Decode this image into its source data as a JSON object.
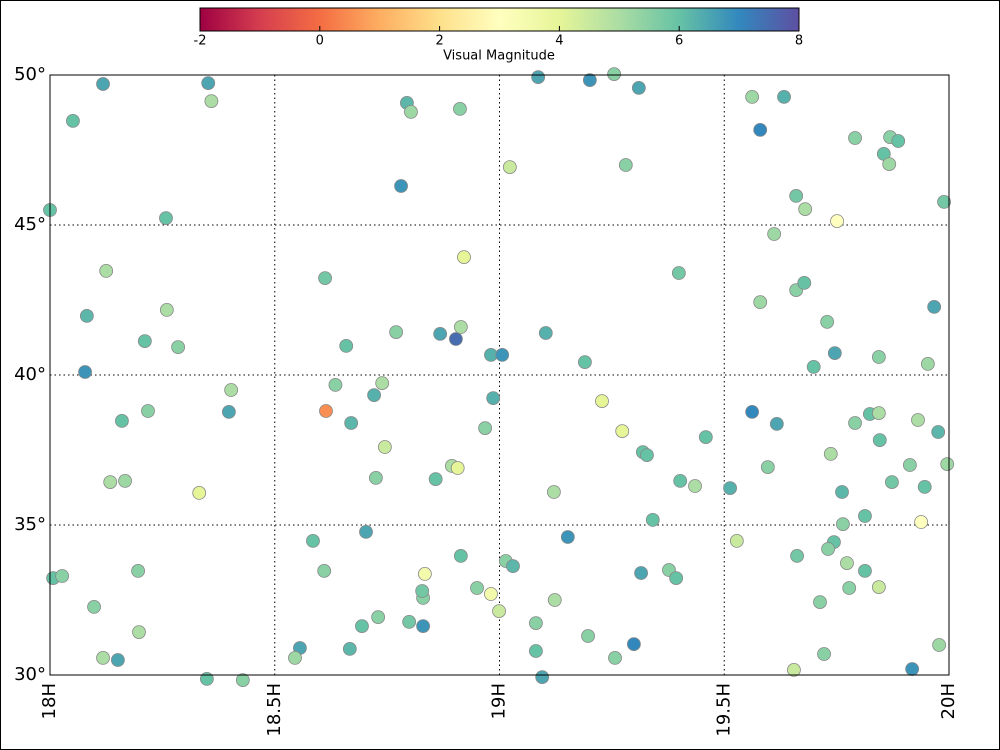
{
  "chart_data": {
    "type": "scatter",
    "xlim": [
      18,
      20
    ],
    "ylim": [
      30,
      50
    ],
    "xticks": [
      {
        "value": 18,
        "label": "18H"
      },
      {
        "value": 18.5,
        "label": "18.5H"
      },
      {
        "value": 19,
        "label": "19H"
      },
      {
        "value": 19.5,
        "label": "19.5H"
      },
      {
        "value": 20,
        "label": "20H"
      }
    ],
    "yticks": [
      {
        "value": 30,
        "label": "30°"
      },
      {
        "value": 35,
        "label": "35°"
      },
      {
        "value": 40,
        "label": "40°"
      },
      {
        "value": 45,
        "label": "45°"
      },
      {
        "value": 50,
        "label": "50°"
      }
    ],
    "grid": true,
    "colormap": "Spectral",
    "colorbar": {
      "label": "Visual Magnitude",
      "clim": [
        -2,
        8
      ],
      "ticks": [
        -2,
        0,
        2,
        4,
        6,
        8
      ]
    },
    "x": [
      18.0,
      18.051,
      18.118,
      18.352,
      18.359,
      18.258,
      18.125,
      18.082,
      18.26,
      18.211,
      18.285,
      18.078,
      18.403,
      18.398,
      18.16,
      18.218,
      18.134,
      18.167,
      18.332,
      18.007,
      18.027,
      18.196,
      18.098,
      18.198,
      18.118,
      18.151,
      18.349,
      18.429,
      18.612,
      18.659,
      18.635,
      18.614,
      18.67,
      18.739,
      18.721,
      18.745,
      18.725,
      18.703,
      18.585,
      18.61,
      18.556,
      18.545,
      18.667,
      18.694,
      18.73,
      18.799,
      18.83,
      18.83,
      18.828,
      18.834,
      18.914,
      18.95,
      18.981,
      18.999,
      19.014,
      19.03,
      19.081,
      19.081,
      19.095,
      19.123,
      19.197,
      19.257,
      19.299,
      19.315,
      19.152,
      19.121,
      19.341,
      19.319,
      19.328,
      19.273,
      19.228,
      19.19,
      18.968,
      18.986,
      18.894,
      18.907,
      18.858,
      18.868,
      18.903,
      18.914,
      18.981,
      19.006,
      19.103,
      18.77,
      18.921,
      19.023,
      18.781,
      18.794,
      18.803,
      18.912,
      19.086,
      19.201,
      19.255,
      19.31,
      19.281,
      19.399,
      19.459,
      19.402,
      19.435,
      19.377,
      19.393,
      19.513,
      19.528,
      19.562,
      19.633,
      19.58,
      19.791,
      19.869,
      19.887,
      19.855,
      19.867,
      19.66,
      19.68,
      19.751,
      19.611,
      19.989,
      19.58,
      19.66,
      19.678,
      19.729,
      19.967,
      19.746,
      19.699,
      19.844,
      19.953,
      19.562,
      19.617,
      19.791,
      19.824,
      19.844,
      19.931,
      19.976,
      19.846,
      19.737,
      19.597,
      19.762,
      19.873,
      19.913,
      19.946,
      19.996,
      19.764,
      19.813,
      19.938,
      19.744,
      19.731,
      19.662,
      19.773,
      19.813,
      19.778,
      19.844,
      19.713,
      19.978,
      19.722,
      19.918,
      19.655
    ],
    "y": [
      45.5,
      48.47,
      49.7,
      49.73,
      49.13,
      45.23,
      43.47,
      41.97,
      42.17,
      41.13,
      40.93,
      40.1,
      39.5,
      38.77,
      38.47,
      38.8,
      36.43,
      36.47,
      36.07,
      33.23,
      33.3,
      33.47,
      32.27,
      31.43,
      30.57,
      30.5,
      29.87,
      29.83,
      43.23,
      40.97,
      39.67,
      38.8,
      38.4,
      39.73,
      39.33,
      37.6,
      36.57,
      34.77,
      34.47,
      33.47,
      30.9,
      30.57,
      30.87,
      31.63,
      31.93,
      31.77,
      31.63,
      32.57,
      32.8,
      33.37,
      33.97,
      32.9,
      32.7,
      32.13,
      33.8,
      33.63,
      30.8,
      31.73,
      29.93,
      32.5,
      31.3,
      30.57,
      31.03,
      33.4,
      34.6,
      36.1,
      35.17,
      37.43,
      37.33,
      38.13,
      39.13,
      40.43,
      38.23,
      39.23,
      36.97,
      36.9,
      36.53,
      41.37,
      41.2,
      41.6,
      40.67,
      40.67,
      41.4,
      41.43,
      43.93,
      46.93,
      46.3,
      49.07,
      48.77,
      48.87,
      49.93,
      49.83,
      50.03,
      49.57,
      47.0,
      43.4,
      37.93,
      36.47,
      36.3,
      33.5,
      33.23,
      36.23,
      34.47,
      49.27,
      49.27,
      48.17,
      47.9,
      47.93,
      47.8,
      47.37,
      47.03,
      45.97,
      45.53,
      45.13,
      44.7,
      45.77,
      42.43,
      42.83,
      43.07,
      41.77,
      42.27,
      40.73,
      40.27,
      40.6,
      40.37,
      38.77,
      38.37,
      38.4,
      38.7,
      38.73,
      38.5,
      38.1,
      37.83,
      37.37,
      36.93,
      36.1,
      36.43,
      37.0,
      36.27,
      37.03,
      35.03,
      35.3,
      35.1,
      34.43,
      34.2,
      33.97,
      33.73,
      33.47,
      32.9,
      32.93,
      32.43,
      31.0,
      30.7,
      30.2,
      30.17
    ],
    "magnitude": [
      6,
      6,
      6.5,
      6.5,
      5,
      6,
      5,
      6.2,
      5,
      6,
      5.5,
      6.8,
      5,
      6.5,
      6,
      5.5,
      5,
      5.2,
      4,
      6,
      5.5,
      5.5,
      5.5,
      5,
      5,
      6.5,
      6,
      5.5,
      5.8,
      6,
      5.5,
      0.5,
      6.2,
      5,
      6.3,
      4.5,
      5.5,
      6.5,
      6,
      5.5,
      6.5,
      5.2,
      6.2,
      6,
      5.5,
      5.8,
      6.8,
      5.5,
      5.8,
      3.5,
      6,
      5.5,
      3.5,
      4.5,
      5.5,
      6.2,
      6,
      5.5,
      6.5,
      5,
      5.5,
      5.5,
      7,
      6.5,
      6.8,
      5,
      6,
      6,
      6,
      4,
      4,
      6,
      5.5,
      6.3,
      5,
      4,
      6,
      6.5,
      7.5,
      5,
      6.3,
      6.8,
      6.3,
      5.5,
      4,
      4.5,
      6.8,
      6.2,
      5.2,
      5.5,
      6.5,
      6.8,
      5.5,
      6.5,
      5.5,
      5.8,
      6,
      6,
      5,
      5.5,
      6,
      6.3,
      4.5,
      5.2,
      6.3,
      7,
      5.5,
      5.5,
      6,
      6,
      5.2,
      5.8,
      5,
      3,
      5.2,
      5.8,
      5.2,
      5.5,
      6,
      5.5,
      6.5,
      6.5,
      6,
      5.5,
      5.2,
      7,
      6.5,
      5.5,
      6,
      5,
      5,
      6.2,
      6,
      5,
      5.5,
      6.2,
      5.8,
      5.5,
      6,
      5.2,
      5.5,
      6,
      3,
      6,
      5.5,
      5.8,
      5,
      6,
      5.5,
      4.5,
      5.5,
      5.2,
      5.5,
      6.8,
      4.5
    ]
  }
}
